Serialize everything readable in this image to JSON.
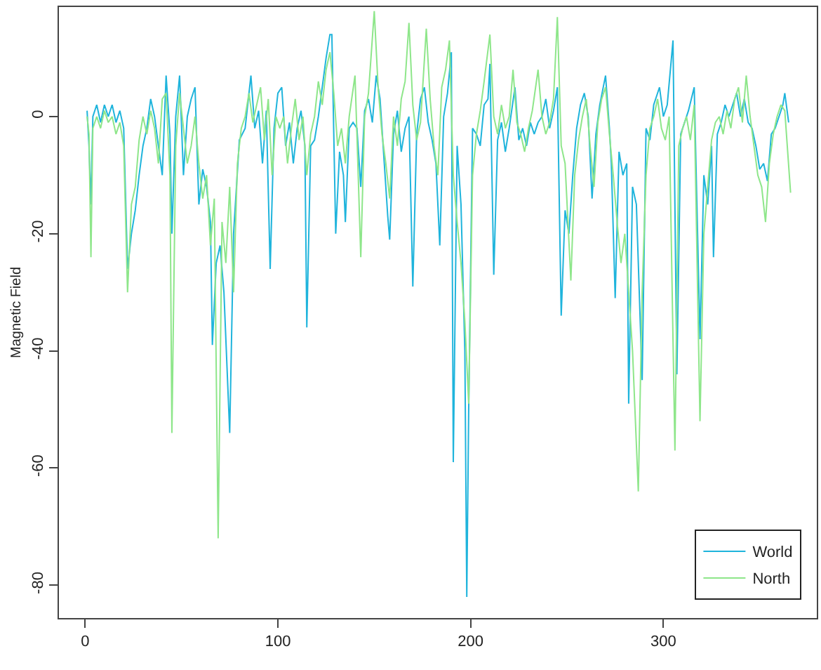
{
  "chart_data": {
    "type": "line",
    "ylabel": "Magnetic Field",
    "xlim": [
      -13.6,
      379.6
    ],
    "ylim": [
      -85.6,
      18.7
    ],
    "xticks": [
      0,
      100,
      200,
      300
    ],
    "yticks": [
      0,
      -20,
      -40,
      -60,
      -80
    ],
    "grid": false,
    "legend": "bottom right",
    "line_style": "solid",
    "marker": "none",
    "series": [
      {
        "name": "World",
        "color": "#1fb4dc",
        "x": [
          1,
          2,
          3,
          4,
          6,
          8,
          10,
          12,
          14,
          16,
          18,
          20,
          22,
          24,
          26,
          28,
          30,
          32,
          34,
          36,
          38,
          40,
          42,
          44,
          45,
          47,
          49,
          51,
          53,
          55,
          57,
          59,
          61,
          63,
          65,
          66,
          68,
          70,
          72,
          75,
          77,
          80,
          83,
          86,
          88,
          90,
          92,
          94,
          96,
          98,
          100,
          102,
          104,
          106,
          108,
          110,
          112,
          114,
          115,
          117,
          119,
          121,
          123,
          125,
          127,
          128,
          130,
          132,
          134,
          135,
          137,
          139,
          141,
          143,
          145,
          147,
          149,
          151,
          153,
          155,
          157,
          158,
          160,
          162,
          164,
          166,
          168,
          170,
          172,
          174,
          176,
          178,
          180,
          182,
          184,
          186,
          188,
          190,
          191,
          193,
          195,
          197,
          198,
          199,
          201,
          203,
          205,
          207,
          209,
          210,
          212,
          214,
          216,
          218,
          220,
          223,
          225,
          227,
          229,
          231,
          233,
          235,
          237,
          239,
          241,
          243,
          245,
          247,
          249,
          251,
          253,
          255,
          257,
          259,
          261,
          263,
          265,
          267,
          270,
          272,
          273,
          275,
          277,
          279,
          281,
          282,
          284,
          286,
          289,
          291,
          293,
          295,
          298,
          300,
          302,
          305,
          307,
          309,
          311,
          313,
          316,
          319,
          321,
          323,
          325,
          326,
          328,
          330,
          332,
          334,
          336,
          338,
          340,
          342,
          344,
          346,
          348,
          350,
          352,
          354,
          356,
          358,
          360,
          362,
          363,
          365
        ],
        "values": [
          1,
          -5,
          -15,
          0,
          2,
          -1,
          2,
          0,
          2,
          -1,
          1,
          -2,
          -26,
          -20,
          -16,
          -10,
          -5,
          -2,
          3,
          0,
          -5,
          -10,
          7,
          -3,
          -20,
          0,
          7,
          -10,
          0,
          3,
          5,
          -15,
          -9,
          -12,
          -18,
          -39,
          -25,
          -22,
          -30,
          -54,
          -20,
          -4,
          -2,
          7,
          -2,
          1,
          -8,
          1,
          -26,
          -2,
          4,
          5,
          -5,
          -1,
          -8,
          -2,
          1,
          -5,
          -36,
          -5,
          -4,
          0,
          5,
          10,
          14,
          14,
          -20,
          -6,
          -10,
          -18,
          -2,
          -1,
          -2,
          -12,
          1,
          3,
          -1,
          7,
          3,
          -7,
          -17,
          -21,
          -3,
          1,
          -6,
          -2,
          0,
          -29,
          -3,
          3,
          5,
          -1,
          -4,
          -8,
          -22,
          0,
          4,
          11,
          -59,
          -5,
          -15,
          -40,
          -82,
          -50,
          -2,
          -3,
          -5,
          2,
          3,
          9,
          -27,
          -4,
          -1,
          -6,
          -2,
          5,
          -4,
          -2,
          -5,
          -1,
          -3,
          -1,
          0,
          3,
          -2,
          1,
          5,
          -34,
          -16,
          -20,
          -10,
          -2,
          2,
          4,
          0,
          -14,
          -3,
          2,
          7,
          -2,
          -8,
          -31,
          -6,
          -10,
          -8,
          -49,
          -12,
          -15,
          -45,
          -2,
          -4,
          2,
          5,
          0,
          2,
          13,
          -44,
          -3,
          -1,
          1,
          5,
          -38,
          -10,
          -15,
          -5,
          -24,
          -3,
          -1,
          2,
          0,
          2,
          4,
          0,
          3,
          -1,
          -2,
          -5,
          -9,
          -8,
          -11,
          -3,
          -2,
          0,
          2,
          4,
          -1
        ]
      },
      {
        "name": "North",
        "color": "#8ee68a",
        "x": [
          1,
          2,
          3,
          4,
          6,
          8,
          10,
          12,
          14,
          16,
          18,
          20,
          22,
          24,
          26,
          28,
          30,
          32,
          34,
          36,
          38,
          40,
          42,
          44,
          45,
          47,
          49,
          51,
          53,
          55,
          57,
          59,
          61,
          63,
          65,
          67,
          69,
          71,
          73,
          75,
          77,
          79,
          81,
          83,
          85,
          87,
          89,
          91,
          93,
          95,
          97,
          99,
          101,
          103,
          105,
          107,
          109,
          111,
          113,
          115,
          117,
          119,
          121,
          123,
          125,
          127,
          129,
          131,
          133,
          135,
          137,
          140,
          141,
          143,
          145,
          147,
          150,
          152,
          154,
          156,
          158,
          160,
          162,
          164,
          166,
          168,
          170,
          172,
          174,
          177,
          179,
          181,
          183,
          185,
          187,
          189,
          191,
          193,
          195,
          197,
          199,
          201,
          203,
          205,
          207,
          210,
          212,
          214,
          216,
          218,
          220,
          222,
          224,
          226,
          228,
          230,
          232,
          235,
          237,
          239,
          241,
          243,
          245,
          247,
          249,
          252,
          254,
          256,
          258,
          260,
          262,
          264,
          266,
          268,
          270,
          272,
          274,
          276,
          278,
          280,
          282,
          284,
          287,
          289,
          291,
          293,
          295,
          297,
          299,
          301,
          303,
          306,
          308,
          310,
          312,
          314,
          316,
          319,
          321,
          323,
          325,
          327,
          329,
          331,
          333,
          335,
          337,
          339,
          341,
          343,
          345,
          347,
          349,
          351,
          353,
          355,
          357,
          359,
          361,
          363,
          366
        ],
        "values": [
          0,
          -3,
          -24,
          -2,
          0,
          -2,
          1,
          -1,
          0,
          -3,
          -1,
          -5,
          -30,
          -15,
          -12,
          -4,
          0,
          -3,
          1,
          -2,
          -8,
          3,
          4,
          -10,
          -54,
          -5,
          4,
          -2,
          -8,
          -5,
          0,
          -8,
          -14,
          -10,
          -22,
          -14,
          -72,
          -18,
          -25,
          -12,
          -30,
          -8,
          -2,
          0,
          4,
          -1,
          2,
          5,
          -4,
          3,
          -10,
          0,
          -2,
          0,
          -8,
          -2,
          3,
          -4,
          0,
          -10,
          -3,
          0,
          6,
          2,
          8,
          11,
          4,
          -5,
          -2,
          -8,
          0,
          7,
          -3,
          -24,
          0,
          4,
          18,
          5,
          -3,
          -8,
          -14,
          0,
          -5,
          3,
          6,
          16,
          2,
          -4,
          -1,
          15,
          3,
          -5,
          -10,
          5,
          8,
          13,
          -10,
          -18,
          -25,
          -35,
          -49,
          -10,
          -3,
          1,
          6,
          14,
          0,
          -3,
          2,
          -2,
          0,
          8,
          -1,
          -3,
          -6,
          -2,
          1,
          8,
          0,
          -3,
          -1,
          3,
          17,
          -5,
          -8,
          -28,
          -10,
          -4,
          0,
          3,
          -5,
          -12,
          -1,
          3,
          5,
          -3,
          -10,
          -18,
          -25,
          -20,
          -30,
          -40,
          -64,
          -30,
          -10,
          -2,
          0,
          3,
          -2,
          -4,
          0,
          -57,
          -5,
          -2,
          0,
          -4,
          2,
          -52,
          -20,
          -12,
          -4,
          -1,
          0,
          -3,
          1,
          -2,
          3,
          5,
          -1,
          7,
          0,
          -5,
          -10,
          -12,
          -18,
          -8,
          -3,
          0,
          2,
          1,
          -13
        ]
      }
    ]
  }
}
